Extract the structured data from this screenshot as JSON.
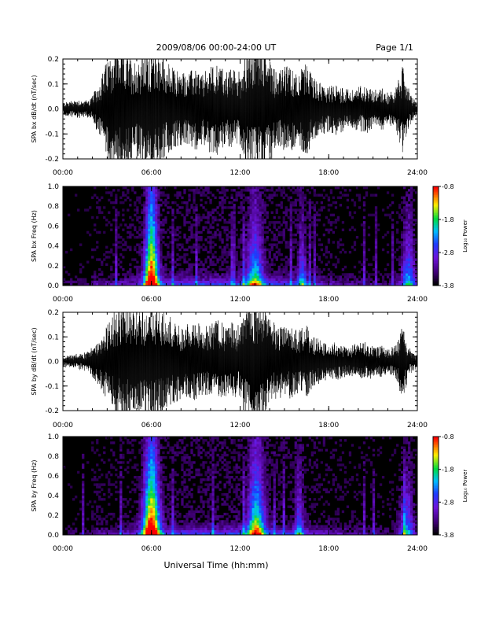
{
  "header": {
    "date_range": "2009/08/06  00:00-24:00 UT",
    "page": "Page 1/1"
  },
  "chart_data": [
    {
      "type": "line",
      "ylabel": "SPA bx dB/dt (nT/sec)",
      "ylim": [
        -0.2,
        0.2
      ],
      "yticks": [
        "0.2",
        "0.1",
        "0.0",
        "-0.1",
        "-0.2"
      ],
      "xticks": [
        "00:00",
        "06:00",
        "12:00",
        "18:00",
        "24:00"
      ],
      "xlim": [
        0,
        24
      ],
      "series": [
        {
          "x": [
            0,
            0.5,
            1,
            1.5,
            2,
            2.5,
            3,
            3.5,
            4,
            4.5,
            5,
            5.5,
            6,
            6.5,
            7,
            7.5,
            8,
            8.5,
            9,
            9.5,
            10,
            10.5,
            11,
            11.5,
            12,
            12.5,
            13,
            13.5,
            14,
            14.5,
            15,
            15.5,
            16,
            16.5,
            17,
            17.5,
            18,
            18.5,
            19,
            19.5,
            20,
            20.5,
            21,
            21.5,
            22,
            22.5,
            23,
            23.5,
            24
          ],
          "envelope": [
            0.02,
            0.025,
            0.03,
            0.025,
            0.04,
            0.09,
            0.16,
            0.2,
            0.2,
            0.17,
            0.16,
            0.19,
            0.2,
            0.2,
            0.15,
            0.13,
            0.12,
            0.12,
            0.13,
            0.11,
            0.14,
            0.15,
            0.12,
            0.13,
            0.12,
            0.2,
            0.2,
            0.2,
            0.18,
            0.12,
            0.14,
            0.13,
            0.12,
            0.15,
            0.1,
            0.08,
            0.07,
            0.08,
            0.07,
            0.06,
            0.07,
            0.08,
            0.06,
            0.07,
            0.05,
            0.06,
            0.14,
            0.05,
            0.02
          ]
        }
      ]
    },
    {
      "type": "heatmap",
      "ylabel": "SPA bx Freq (Hz)",
      "ylim": [
        0.0,
        1.0
      ],
      "yticks": [
        "1.0",
        "0.8",
        "0.6",
        "0.4",
        "0.2",
        "0.0"
      ],
      "xticks": [
        "00:00",
        "06:00",
        "12:00",
        "18:00",
        "24:00"
      ],
      "xlim": [
        0,
        24
      ],
      "colorbar": {
        "label": "Log₁₀ Power",
        "ticks": [
          "-0.8",
          "-1.8",
          "-2.8",
          "-3.8"
        ],
        "range": [
          -3.8,
          -0.8
        ]
      },
      "bursts": [
        {
          "t": 6.0,
          "width": 0.5,
          "strength": 1.0
        },
        {
          "t": 13.0,
          "width": 0.6,
          "strength": 0.55
        },
        {
          "t": 16.2,
          "width": 0.3,
          "strength": 0.4
        },
        {
          "t": 23.4,
          "width": 0.5,
          "strength": 0.5
        }
      ]
    },
    {
      "type": "line",
      "ylabel": "SPA by dB/dt (nT/sec)",
      "ylim": [
        -0.2,
        0.2
      ],
      "yticks": [
        "0.2",
        "0.1",
        "0.0",
        "-0.1",
        "-0.2"
      ],
      "xticks": [
        "00:00",
        "06:00",
        "12:00",
        "18:00",
        "24:00"
      ],
      "xlim": [
        0,
        24
      ],
      "series": [
        {
          "x": [
            0,
            0.5,
            1,
            1.5,
            2,
            2.5,
            3,
            3.5,
            4,
            4.5,
            5,
            5.5,
            6,
            6.5,
            7,
            7.5,
            8,
            8.5,
            9,
            9.5,
            10,
            10.5,
            11,
            11.5,
            12,
            12.5,
            13,
            13.5,
            14,
            14.5,
            15,
            15.5,
            16,
            16.5,
            17,
            17.5,
            18,
            18.5,
            19,
            19.5,
            20,
            20.5,
            21,
            21.5,
            22,
            22.5,
            23,
            23.5,
            24
          ],
          "envelope": [
            0.015,
            0.02,
            0.025,
            0.03,
            0.05,
            0.08,
            0.13,
            0.17,
            0.2,
            0.18,
            0.17,
            0.18,
            0.2,
            0.2,
            0.15,
            0.14,
            0.12,
            0.12,
            0.13,
            0.12,
            0.12,
            0.14,
            0.12,
            0.13,
            0.12,
            0.2,
            0.2,
            0.2,
            0.15,
            0.12,
            0.11,
            0.12,
            0.1,
            0.12,
            0.08,
            0.07,
            0.06,
            0.06,
            0.05,
            0.05,
            0.06,
            0.06,
            0.05,
            0.05,
            0.04,
            0.05,
            0.12,
            0.04,
            0.02
          ]
        }
      ]
    },
    {
      "type": "heatmap",
      "ylabel": "SPA by Freq (Hz)",
      "ylim": [
        0.0,
        1.0
      ],
      "yticks": [
        "1.0",
        "0.8",
        "0.6",
        "0.4",
        "0.2",
        "0.0"
      ],
      "xticks": [
        "00:00",
        "06:00",
        "12:00",
        "18:00",
        "24:00"
      ],
      "xlim": [
        0,
        24
      ],
      "colorbar": {
        "label": "Log₁₀ Power",
        "ticks": [
          "-0.8",
          "-1.8",
          "-2.8",
          "-3.8"
        ],
        "range": [
          -3.8,
          -0.8
        ]
      },
      "bursts": [
        {
          "t": 6.0,
          "width": 0.6,
          "strength": 1.0
        },
        {
          "t": 13.1,
          "width": 0.6,
          "strength": 0.7
        },
        {
          "t": 16.0,
          "width": 0.3,
          "strength": 0.4
        },
        {
          "t": 23.3,
          "width": 0.5,
          "strength": 0.45
        }
      ]
    }
  ],
  "footer": {
    "xlabel": "Universal Time (hh:mm)"
  }
}
